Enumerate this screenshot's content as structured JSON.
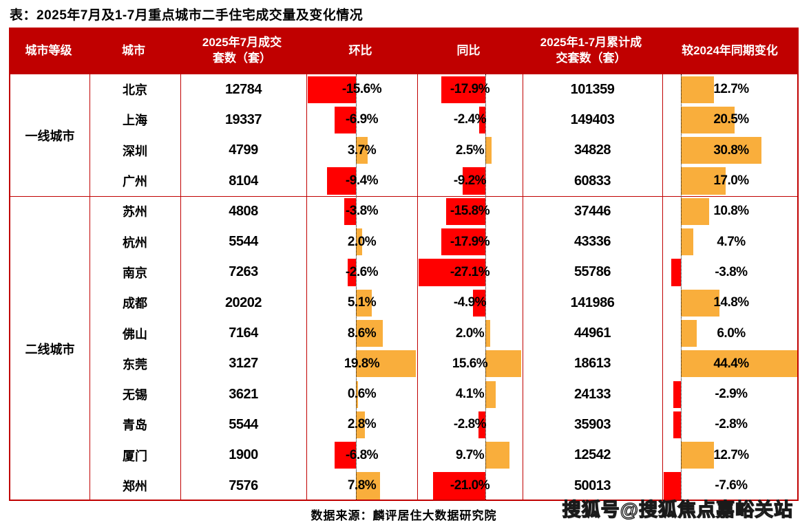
{
  "title": "表：2025年7月及1-7月重点城市二手住宅成交量及变化情况",
  "footer": {
    "source": "数据来源：麟评居住大数据研究院",
    "watermark": "搜狐号@搜狐焦点嘉峪关站"
  },
  "colors": {
    "header_bg": "#C00000",
    "border": "#C00000",
    "negative_bar": "#FF0000",
    "positive_bar": "#F9AE3C",
    "header_text": "#FFFFFF",
    "body_text": "#000000"
  },
  "chart_data": {
    "type": "table",
    "title": "表：2025年7月及1-7月重点城市二手住宅成交量及变化情况",
    "columns": [
      "城市等级",
      "城市",
      "2025年7月成交套数（套）",
      "环比",
      "同比",
      "2025年1-7月累计成交套数（套）",
      "较2024年同期变化"
    ],
    "bar_columns_note": "环比 / 同比 / 较2024年同期变化 三列含条形图：负值红色向左，正值橙色向右，黑色虚线为零基线",
    "groups": [
      {
        "tier": "一线城市",
        "rows": [
          {
            "city": "北京",
            "jul_sales": 12784,
            "mom_pct": -15.6,
            "yoy_pct": -17.9,
            "cum_sales": 101359,
            "cum_change_pct": 12.7
          },
          {
            "city": "上海",
            "jul_sales": 19337,
            "mom_pct": -6.9,
            "yoy_pct": -2.4,
            "cum_sales": 149403,
            "cum_change_pct": 20.5
          },
          {
            "city": "深圳",
            "jul_sales": 4799,
            "mom_pct": 3.7,
            "yoy_pct": 2.5,
            "cum_sales": 34828,
            "cum_change_pct": 30.8
          },
          {
            "city": "广州",
            "jul_sales": 8104,
            "mom_pct": -9.4,
            "yoy_pct": -9.2,
            "cum_sales": 60833,
            "cum_change_pct": 17.0
          }
        ]
      },
      {
        "tier": "二线城市",
        "rows": [
          {
            "city": "苏州",
            "jul_sales": 4808,
            "mom_pct": -3.8,
            "yoy_pct": -15.8,
            "cum_sales": 37446,
            "cum_change_pct": 10.8
          },
          {
            "city": "杭州",
            "jul_sales": 5544,
            "mom_pct": 2.0,
            "yoy_pct": -17.9,
            "cum_sales": 43336,
            "cum_change_pct": 4.7
          },
          {
            "city": "南京",
            "jul_sales": 7263,
            "mom_pct": -2.6,
            "yoy_pct": -27.1,
            "cum_sales": 55786,
            "cum_change_pct": -3.8
          },
          {
            "city": "成都",
            "jul_sales": 20202,
            "mom_pct": 5.1,
            "yoy_pct": -4.9,
            "cum_sales": 141986,
            "cum_change_pct": 14.8
          },
          {
            "city": "佛山",
            "jul_sales": 7164,
            "mom_pct": 8.6,
            "yoy_pct": 2.0,
            "cum_sales": 44961,
            "cum_change_pct": 6.0
          },
          {
            "city": "东莞",
            "jul_sales": 3127,
            "mom_pct": 19.8,
            "yoy_pct": 15.6,
            "cum_sales": 18613,
            "cum_change_pct": 44.4
          },
          {
            "city": "无锡",
            "jul_sales": 3621,
            "mom_pct": 0.6,
            "yoy_pct": 4.1,
            "cum_sales": 24133,
            "cum_change_pct": -2.9
          },
          {
            "city": "青岛",
            "jul_sales": 5544,
            "mom_pct": 2.8,
            "yoy_pct": -2.8,
            "cum_sales": 35903,
            "cum_change_pct": -2.8
          },
          {
            "city": "厦门",
            "jul_sales": 1900,
            "mom_pct": -6.8,
            "yoy_pct": 9.7,
            "cum_sales": 12542,
            "cum_change_pct": 12.7
          },
          {
            "city": "郑州",
            "jul_sales": 7576,
            "mom_pct": 7.8,
            "yoy_pct": -21.0,
            "cum_sales": 50013,
            "cum_change_pct": -7.6
          }
        ]
      }
    ]
  }
}
